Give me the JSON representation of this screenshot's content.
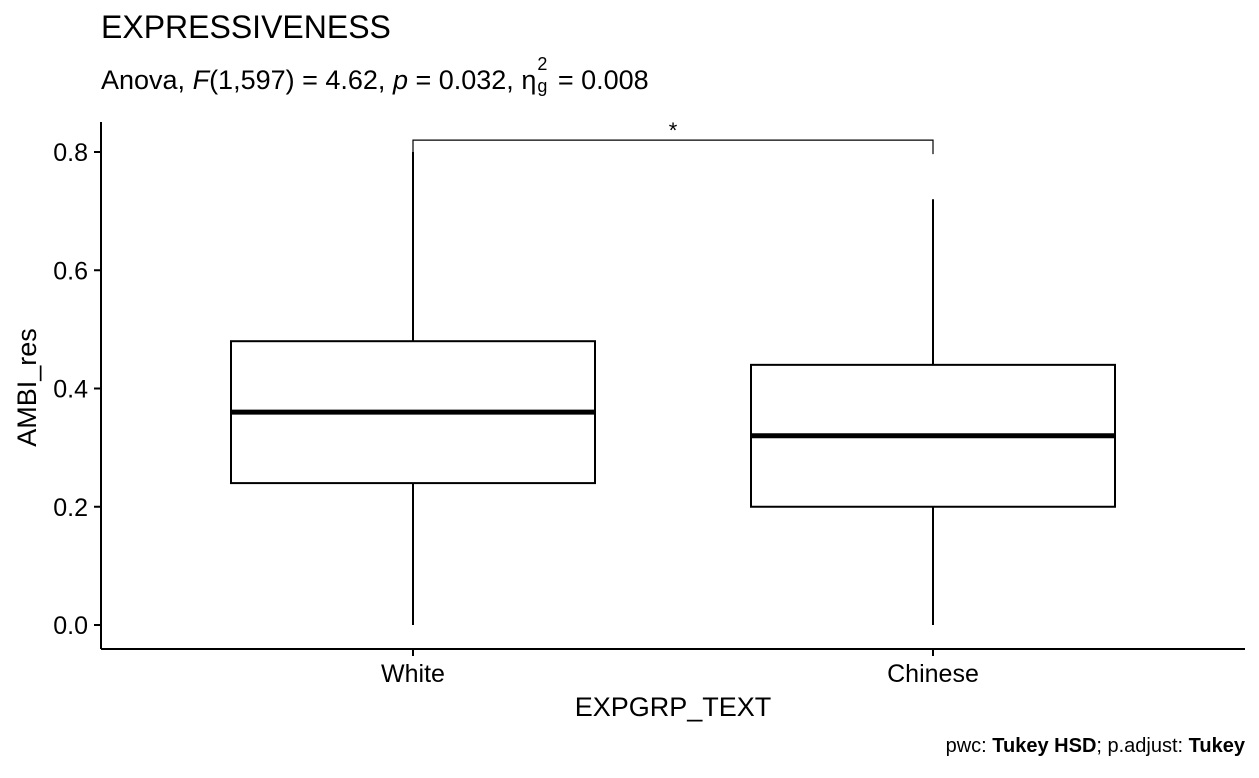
{
  "chart_data": {
    "type": "box",
    "title": "EXPRESSIVENESS",
    "subtitle": {
      "prefix": "Anova, ",
      "f_symbol": "F",
      "f_args": "(1,597) = 4.62, ",
      "p_symbol": "p",
      "p_value": " = 0.032, ",
      "eta_symbol": "η",
      "eta_sup": "2",
      "eta_sub": "g",
      "eta_value": " = 0.008"
    },
    "xlabel": "EXPGRP_TEXT",
    "ylabel": "AMBI_res",
    "ylim": [
      -0.04,
      0.85
    ],
    "yticks": [
      0.0,
      0.2,
      0.4,
      0.6,
      0.8
    ],
    "ytick_labels": [
      "0.0",
      "0.2",
      "0.4",
      "0.6",
      "0.8"
    ],
    "categories": [
      "White",
      "Chinese"
    ],
    "boxes": [
      {
        "category": "White",
        "whisker_low": 0.0,
        "q1": 0.24,
        "median": 0.36,
        "q3": 0.48,
        "whisker_high": 0.8
      },
      {
        "category": "Chinese",
        "whisker_low": 0.0,
        "q1": 0.2,
        "median": 0.32,
        "q3": 0.44,
        "whisker_high": 0.72
      }
    ],
    "significance": {
      "groups": [
        "White",
        "Chinese"
      ],
      "y": 0.81,
      "label": "*"
    },
    "caption": {
      "pwc_label": "pwc: ",
      "pwc_value": "Tukey HSD",
      "sep": "; p.adjust: ",
      "adjust_value": "Tukey"
    }
  }
}
